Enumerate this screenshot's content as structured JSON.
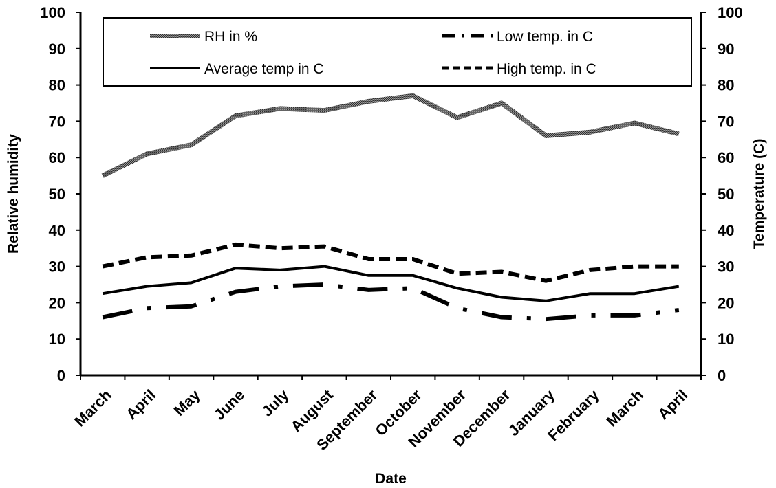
{
  "chart_data": {
    "type": "line",
    "categories": [
      "March",
      "April",
      "May",
      "June",
      "July",
      "August",
      "September",
      "October",
      "November",
      "December",
      "January",
      "February",
      "March",
      "April"
    ],
    "xlabel": "Date",
    "ylabel": "Relative humidity",
    "y2label": "Temperature (C)",
    "ylim": [
      0,
      100
    ],
    "y2lim": [
      0,
      100
    ],
    "yticks": [
      "0",
      "10",
      "20",
      "30",
      "40",
      "50",
      "60",
      "70",
      "80",
      "90",
      "100"
    ],
    "y2ticks": [
      "0",
      "10",
      "20",
      "30",
      "40",
      "50",
      "60",
      "70",
      "80",
      "90",
      "100"
    ],
    "grid": false,
    "legend_position": "top",
    "series": [
      {
        "name": "RH in %",
        "style": "dotted-thick",
        "color": "#666666",
        "values": [
          55,
          61,
          63.5,
          71.5,
          73.5,
          73,
          75.5,
          77,
          71,
          75,
          66,
          67,
          69.5,
          66.5
        ]
      },
      {
        "name": "Low temp. in C",
        "style": "dash-dot",
        "color": "#000000",
        "values": [
          16,
          18.5,
          19,
          23,
          24.5,
          25,
          23.5,
          24,
          18.5,
          16,
          15.5,
          16.5,
          16.5,
          18
        ]
      },
      {
        "name": "Average temp in C",
        "style": "solid",
        "color": "#000000",
        "values": [
          22.5,
          24.5,
          25.5,
          29.5,
          29,
          30,
          27.5,
          27.5,
          24,
          21.5,
          20.5,
          22.5,
          22.5,
          24.5
        ]
      },
      {
        "name": "High temp. in C",
        "style": "dashed",
        "color": "#000000",
        "values": [
          30,
          32.5,
          33,
          36,
          35,
          35.5,
          32,
          32,
          28,
          28.5,
          26,
          29,
          30,
          30
        ]
      }
    ]
  }
}
